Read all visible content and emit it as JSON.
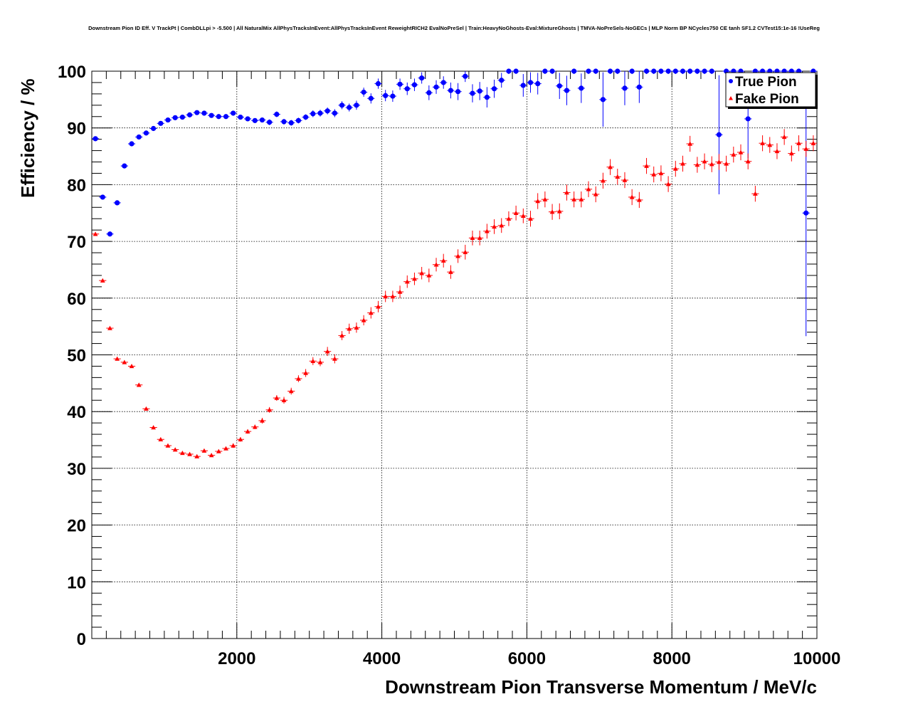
{
  "chart_data": {
    "type": "scatter",
    "title": "Downstream Pion ID Eff. V TrackPt | CombDLLpi > -5.500 | All NaturalMix AllPhysTracksInEvent:AllPhysTracksInEvent ReweightRICH2 EvalNoPreSel | Train:HeavyNoGhosts-Eval:MixtureGhosts | TMVA-NoPreSels-NoGECs | MLP Norm BP NCycles750 CE tanh SF1.2 CVTest15:1e-16 !UseReg",
    "xlabel": "Downstream Pion Transverse Momentum / MeV/c",
    "ylabel": "Efficiency / %",
    "xlim": [
      0,
      10000
    ],
    "ylim": [
      0,
      100
    ],
    "x_ticks": [
      "2000",
      "4000",
      "6000",
      "8000",
      "10000"
    ],
    "y_ticks": [
      "0",
      "10",
      "20",
      "30",
      "40",
      "50",
      "60",
      "70",
      "80",
      "90",
      "100"
    ],
    "grid": true,
    "legend_position": "top-right",
    "series": [
      {
        "name": "True Pion",
        "color": "#0000ff",
        "marker": "circle",
        "x": [
          50,
          150,
          250,
          350,
          450,
          550,
          650,
          750,
          850,
          950,
          1050,
          1150,
          1250,
          1350,
          1450,
          1550,
          1650,
          1750,
          1850,
          1950,
          2050,
          2150,
          2250,
          2350,
          2450,
          2550,
          2650,
          2750,
          2850,
          2950,
          3050,
          3150,
          3250,
          3350,
          3450,
          3550,
          3650,
          3750,
          3850,
          3950,
          4050,
          4150,
          4250,
          4350,
          4450,
          4550,
          4650,
          4750,
          4850,
          4950,
          5050,
          5150,
          5250,
          5350,
          5450,
          5550,
          5650,
          5750,
          5850,
          5950,
          6050,
          6150,
          6250,
          6350,
          6450,
          6550,
          6650,
          6750,
          6850,
          6950,
          7050,
          7150,
          7250,
          7350,
          7450,
          7550,
          7650,
          7750,
          7850,
          7950,
          8050,
          8150,
          8250,
          8350,
          8450,
          8550,
          8650,
          8750,
          8850,
          8950,
          9050,
          9150,
          9250,
          9350,
          9450,
          9550,
          9650,
          9750,
          9850,
          9950
        ],
        "y": [
          88.1,
          77.8,
          71.3,
          76.8,
          83.3,
          87.2,
          88.4,
          89.1,
          89.9,
          90.8,
          91.4,
          91.8,
          91.9,
          92.3,
          92.7,
          92.6,
          92.2,
          92.0,
          92.0,
          92.6,
          91.9,
          91.6,
          91.3,
          91.4,
          91.0,
          92.4,
          91.1,
          90.9,
          91.3,
          91.9,
          92.5,
          92.6,
          93.0,
          92.6,
          94.0,
          93.6,
          94.0,
          96.3,
          95.2,
          97.8,
          95.7,
          95.6,
          97.7,
          96.9,
          97.6,
          98.8,
          96.2,
          97.2,
          98.0,
          96.6,
          96.4,
          99.1,
          96.1,
          96.5,
          95.4,
          96.9,
          98.4,
          100,
          100,
          97.5,
          98.0,
          97.8,
          100,
          100,
          97.4,
          96.6,
          100,
          97.0,
          100,
          100,
          95.0,
          100,
          100,
          97.0,
          100,
          97.2,
          100,
          100,
          100,
          100,
          100,
          100,
          100,
          100,
          100,
          100,
          88.8,
          100,
          100,
          100,
          91.6,
          100,
          100,
          100,
          100,
          100,
          100,
          100,
          75.0,
          100
        ],
        "yerr": [
          0.4,
          0.4,
          0.4,
          0.4,
          0.4,
          0.4,
          0.4,
          0.4,
          0.4,
          0.4,
          0.4,
          0.4,
          0.4,
          0.4,
          0.4,
          0.4,
          0.4,
          0.4,
          0.4,
          0.4,
          0.4,
          0.4,
          0.4,
          0.4,
          0.5,
          0.5,
          0.5,
          0.5,
          0.5,
          0.5,
          0.6,
          0.6,
          0.6,
          0.7,
          0.7,
          0.7,
          0.8,
          0.8,
          0.9,
          0.9,
          1.0,
          1.0,
          1.0,
          1.1,
          1.1,
          1.0,
          1.3,
          1.2,
          1.1,
          1.4,
          1.5,
          1.0,
          1.6,
          1.6,
          1.8,
          1.6,
          1.3,
          0.5,
          0.5,
          2.0,
          1.8,
          1.9,
          0.5,
          0.5,
          2.3,
          2.6,
          0.5,
          2.6,
          0.5,
          0.5,
          4.8,
          0.5,
          0.5,
          3.0,
          0.5,
          2.8,
          0.5,
          0.5,
          0.5,
          0.5,
          0.5,
          0.5,
          0.5,
          0.5,
          0.5,
          0.5,
          10.5,
          0.5,
          0.5,
          0.5,
          7.0,
          0.5,
          0.5,
          0.5,
          0.5,
          0.5,
          0.5,
          0.5,
          21.7,
          0.5
        ]
      },
      {
        "name": "Fake Pion",
        "color": "#ff0000",
        "marker": "triangle",
        "x": [
          50,
          150,
          250,
          350,
          450,
          550,
          650,
          750,
          850,
          950,
          1050,
          1150,
          1250,
          1350,
          1450,
          1550,
          1650,
          1750,
          1850,
          1950,
          2050,
          2150,
          2250,
          2350,
          2450,
          2550,
          2650,
          2750,
          2850,
          2950,
          3050,
          3150,
          3250,
          3350,
          3450,
          3550,
          3650,
          3750,
          3850,
          3950,
          4050,
          4150,
          4250,
          4350,
          4450,
          4550,
          4650,
          4750,
          4850,
          4950,
          5050,
          5150,
          5250,
          5350,
          5450,
          5550,
          5650,
          5750,
          5850,
          5950,
          6050,
          6150,
          6250,
          6350,
          6450,
          6550,
          6650,
          6750,
          6850,
          6950,
          7050,
          7150,
          7250,
          7350,
          7450,
          7550,
          7650,
          7750,
          7850,
          7950,
          8050,
          8150,
          8250,
          8350,
          8450,
          8550,
          8650,
          8750,
          8850,
          8950,
          9050,
          9150,
          9250,
          9350,
          9450,
          9550,
          9650,
          9750,
          9850,
          9950
        ],
        "y": [
          71.3,
          63.1,
          54.7,
          49.3,
          48.7,
          48.0,
          44.7,
          40.5,
          37.2,
          35.1,
          34.0,
          33.3,
          32.7,
          32.5,
          32.1,
          33.1,
          32.3,
          33.0,
          33.5,
          34.0,
          35.1,
          36.5,
          37.3,
          38.4,
          40.3,
          42.4,
          42.0,
          43.6,
          45.8,
          46.8,
          48.9,
          48.7,
          50.6,
          49.3,
          53.4,
          54.6,
          54.8,
          56.1,
          57.4,
          58.5,
          60.3,
          60.3,
          61.1,
          62.9,
          63.4,
          64.4,
          64.0,
          65.9,
          66.6,
          64.6,
          67.4,
          68.1,
          70.6,
          70.6,
          71.8,
          72.6,
          72.8,
          74.0,
          75.0,
          74.5,
          74.0,
          77.1,
          77.4,
          75.2,
          75.3,
          78.6,
          77.4,
          77.4,
          79.2,
          78.3,
          80.7,
          83.1,
          81.4,
          80.8,
          77.8,
          77.3,
          83.3,
          81.8,
          82.0,
          80.1,
          82.8,
          83.7,
          87.2,
          83.5,
          84.1,
          83.6,
          84.0,
          83.7,
          85.3,
          85.7,
          84.1,
          78.4,
          87.3,
          87.0,
          85.9,
          88.4,
          85.5,
          87.3,
          86.3,
          87.3
        ],
        "yerr": [
          0.3,
          0.3,
          0.3,
          0.3,
          0.3,
          0.3,
          0.3,
          0.3,
          0.3,
          0.3,
          0.3,
          0.3,
          0.3,
          0.3,
          0.3,
          0.3,
          0.3,
          0.3,
          0.3,
          0.4,
          0.4,
          0.4,
          0.4,
          0.5,
          0.5,
          0.5,
          0.6,
          0.6,
          0.6,
          0.7,
          0.7,
          0.7,
          0.8,
          0.8,
          0.8,
          0.9,
          0.9,
          0.9,
          1.0,
          1.0,
          1.0,
          1.0,
          1.1,
          1.1,
          1.1,
          1.1,
          1.2,
          1.2,
          1.2,
          1.2,
          1.2,
          1.3,
          1.3,
          1.3,
          1.3,
          1.3,
          1.3,
          1.3,
          1.3,
          1.3,
          1.4,
          1.4,
          1.4,
          1.4,
          1.4,
          1.4,
          1.4,
          1.4,
          1.4,
          1.4,
          1.4,
          1.4,
          1.4,
          1.4,
          1.4,
          1.4,
          1.4,
          1.4,
          1.4,
          1.4,
          1.4,
          1.4,
          1.4,
          1.4,
          1.4,
          1.4,
          1.4,
          1.4,
          1.4,
          1.4,
          1.4,
          1.4,
          1.4,
          1.4,
          1.4,
          1.4,
          1.4,
          1.4,
          1.4,
          1.4
        ]
      }
    ]
  }
}
